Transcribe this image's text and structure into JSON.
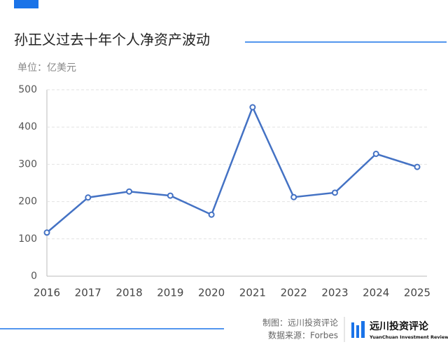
{
  "chart_data": {
    "type": "line",
    "title": "孙正义过去十年个人净资产波动",
    "subtitle": "单位：亿美元",
    "categories": [
      "2016",
      "2017",
      "2018",
      "2019",
      "2020",
      "2021",
      "2022",
      "2023",
      "2024",
      "2025"
    ],
    "values": [
      117,
      211,
      227,
      216,
      165,
      453,
      212,
      224,
      328,
      293
    ],
    "color": "#4472c4",
    "ylim": [
      0,
      500
    ],
    "yticks": [
      0,
      100,
      200,
      300,
      400,
      500
    ],
    "grid": true
  },
  "credits": {
    "made_by": "制图：远川投资评论",
    "source": "数据来源：Forbes"
  },
  "brand": {
    "name": "远川投资评论",
    "tagline": "YuanChuan Investment Review"
  }
}
